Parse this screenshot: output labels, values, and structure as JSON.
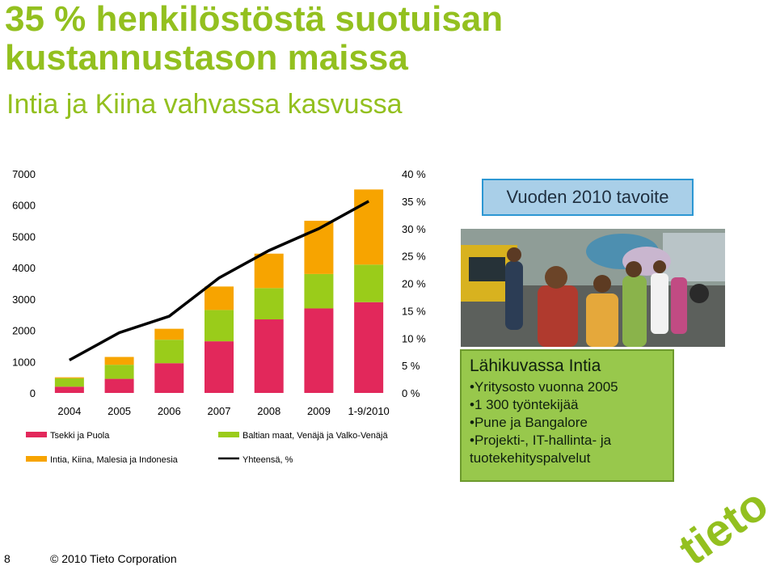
{
  "slide": {
    "title": "35 % henkilöstöstä suotuisan kustannustason maissa",
    "subtitle": "Intia ja Kiina vahvassa kasvussa",
    "goal_label": "Vuoden 2010 tavoite",
    "info": {
      "title": "Lähikuvassa Intia",
      "items": [
        "Yritysosto vuonna 2005",
        "1 300 työntekijää",
        "Pune ja Bangalore",
        "Projekti-, IT-hallinta- ja tuotekehityspalvelut"
      ]
    },
    "logo_text": "tieto",
    "page_number": "8",
    "copyright": "© 2010 Tieto Corporation"
  },
  "colors": {
    "title_green": "#93c01f",
    "tsekki": "#e2285b",
    "baltia": "#9acc1a",
    "intia": "#f7a400",
    "total_line": "#000000",
    "goal_fill": "#a9cfe8",
    "goal_border": "#2c97d3",
    "info_fill": "#98c84c"
  },
  "chart_data": {
    "type": "bar",
    "stacked": true,
    "categories": [
      "2004",
      "2005",
      "2006",
      "2007",
      "2008",
      "2009",
      "1-9/2010"
    ],
    "series": [
      {
        "name": "Tsekki ja Puola",
        "color": "#e2285b",
        "values": [
          200,
          450,
          950,
          1650,
          2350,
          2700,
          2900
        ]
      },
      {
        "name": "Baltian maat, Venäjä ja Valko-Venäjä",
        "color": "#9acc1a",
        "values": [
          270,
          450,
          750,
          1000,
          1000,
          1100,
          1200
        ]
      },
      {
        "name": "Intia, Kiina, Malesia ja Indonesia",
        "color": "#f7a400",
        "values": [
          30,
          250,
          350,
          750,
          1100,
          1700,
          2400
        ]
      }
    ],
    "line": {
      "name": "Yhteensä, %",
      "axis": "right",
      "values": [
        6,
        11,
        14,
        21,
        26,
        30,
        35
      ]
    },
    "y_left": {
      "ylim": [
        0,
        7000
      ],
      "ticks": [
        "0",
        "1000",
        "2000",
        "3000",
        "4000",
        "5000",
        "6000",
        "7000"
      ]
    },
    "y_right": {
      "ylim": [
        0,
        40
      ],
      "ticks": [
        "0 %",
        "5 %",
        "10 %",
        "15 %",
        "20 %",
        "25 %",
        "30 %",
        "35 %",
        "40 %"
      ]
    },
    "legend": [
      {
        "label": "Tsekki ja Puola",
        "kind": "box",
        "color": "#e2285b"
      },
      {
        "label": "Baltian maat, Venäjä ja Valko-Venäjä",
        "kind": "box",
        "color": "#9acc1a"
      },
      {
        "label": "Intia, Kiina, Malesia ja Indonesia",
        "kind": "box",
        "color": "#f7a400"
      },
      {
        "label": "Yhteensä, %",
        "kind": "line",
        "color": "#000000"
      }
    ],
    "legend_position": "bottom",
    "grid": false
  }
}
